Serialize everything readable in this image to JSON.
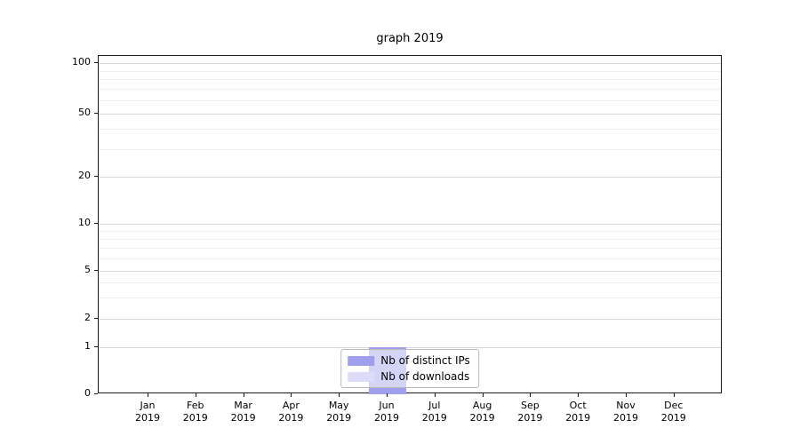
{
  "chart_data": {
    "type": "bar",
    "title": "graph 2019",
    "x_categories": [
      "Jan",
      "Feb",
      "Mar",
      "Apr",
      "May",
      "Jun",
      "Jul",
      "Aug",
      "Sep",
      "Oct",
      "Nov",
      "Dec"
    ],
    "x_year": "2019",
    "y_ticks": [
      0,
      1,
      2,
      5,
      10,
      20,
      50,
      100
    ],
    "y_minor_ticks": [
      3,
      4,
      6,
      7,
      8,
      9,
      30,
      40,
      60,
      70,
      80,
      90
    ],
    "ylim": [
      0,
      100
    ],
    "y_scale": "log-like",
    "grid": "horizontal",
    "legend_position": "lower center",
    "series": [
      {
        "name": "Nb of distinct IPs",
        "color": "#9f9fee",
        "values": [
          0,
          0,
          0,
          0,
          0,
          1,
          0,
          0,
          0,
          0,
          0,
          0
        ]
      },
      {
        "name": "Nb of downloads",
        "color": "#dcdcf8",
        "values": [
          0,
          0,
          0,
          0,
          0,
          1,
          0,
          0,
          0,
          0,
          0,
          0
        ]
      }
    ]
  }
}
